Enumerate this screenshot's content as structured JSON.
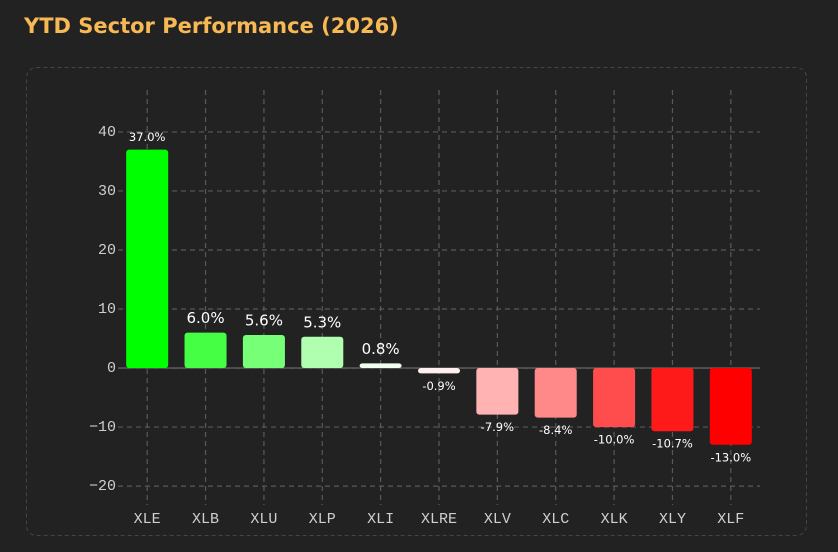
{
  "chart_data": {
    "type": "bar",
    "title": "YTD Sector Performance (2026)",
    "categories": [
      "XLE",
      "XLB",
      "XLU",
      "XLP",
      "XLI",
      "XLRE",
      "XLV",
      "XLC",
      "XLK",
      "XLY",
      "XLF"
    ],
    "values": [
      37.0,
      6.0,
      5.6,
      5.3,
      0.8,
      -0.9,
      -7.9,
      -8.4,
      -10.0,
      -10.7,
      -13.0
    ],
    "value_labels": [
      "37.0%",
      "6.0%",
      "5.6%",
      "5.3%",
      "0.8%",
      "-0.9%",
      "-7.9%",
      "-8.4%",
      "-10.0%",
      "-10.7%",
      "-13.0%"
    ],
    "colors": [
      "#00ff00",
      "#44ff44",
      "#77ff77",
      "#b0ffb0",
      "#f0fff0",
      "#fff0f0",
      "#ffb3b3",
      "#ff8888",
      "#ff4d4d",
      "#ff1a1a",
      "#ff0000"
    ],
    "ylim": [
      -23.2,
      47.1
    ],
    "yticks": [
      {
        "value": -20,
        "label": "−20"
      },
      {
        "value": -10,
        "label": "−10"
      },
      0,
      10,
      20,
      30,
      40
    ],
    "grid": true
  }
}
